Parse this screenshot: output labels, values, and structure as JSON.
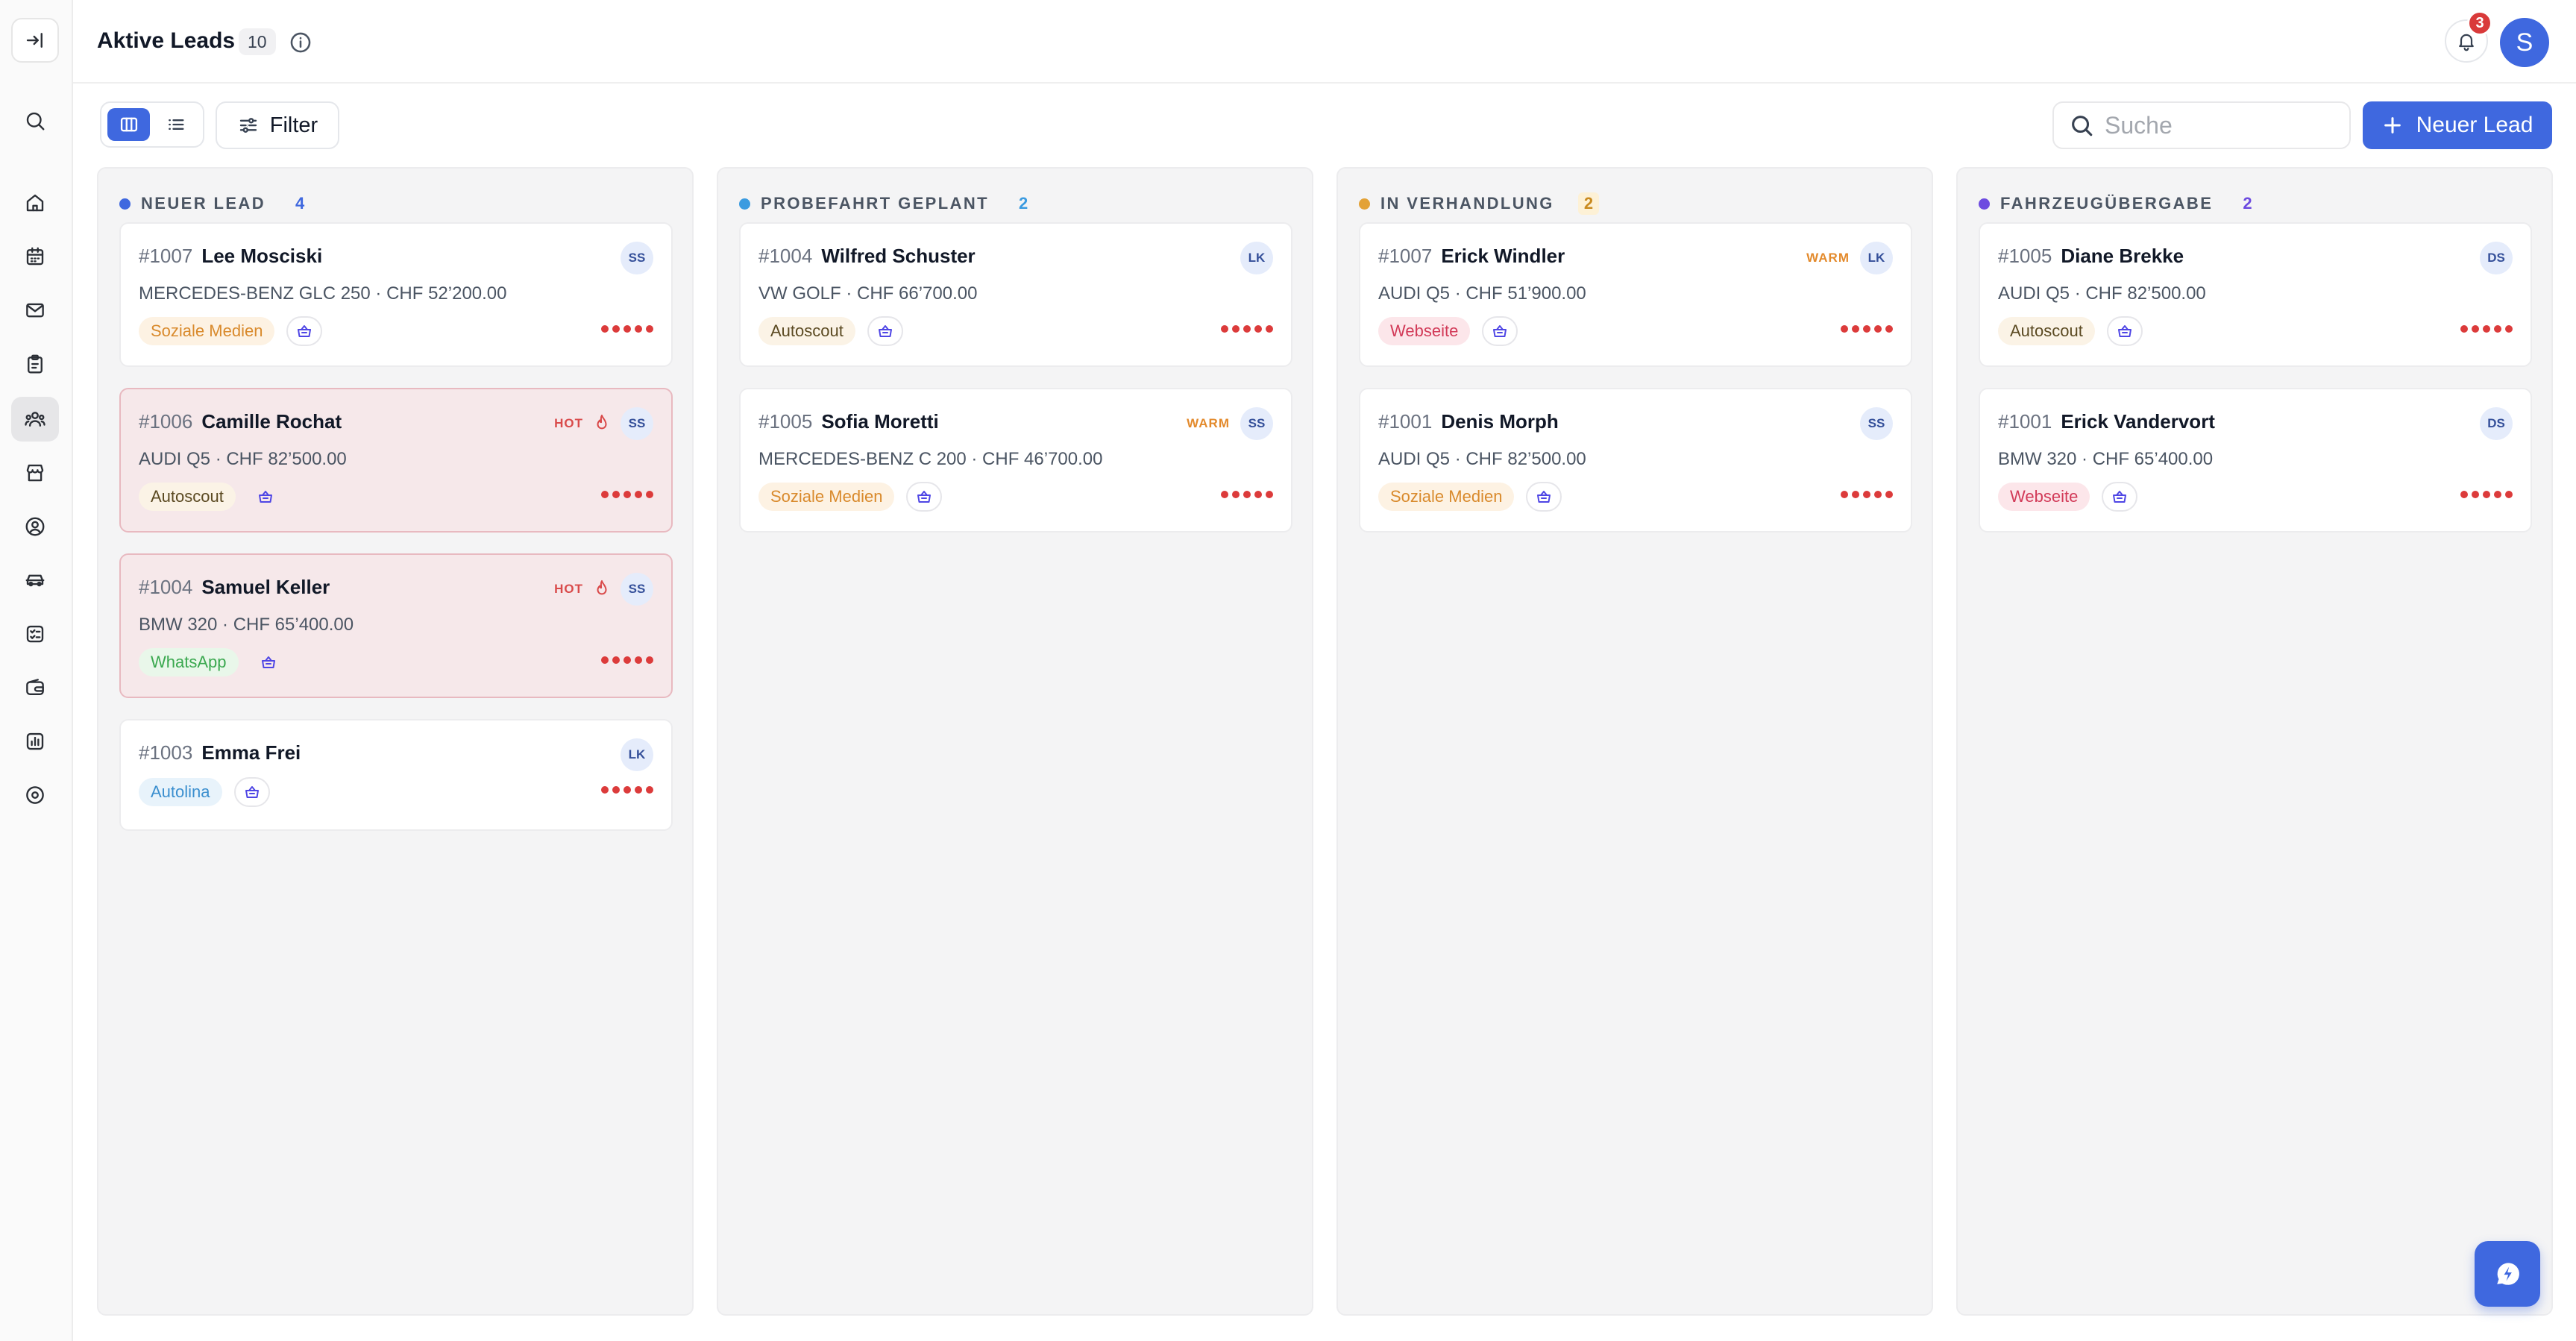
{
  "header": {
    "title": "Aktive Leads",
    "count": "10",
    "notification_count": "3",
    "avatar_initial": "S"
  },
  "toolbar": {
    "filter_label": "Filter",
    "search_placeholder": "Suche",
    "search_value": "",
    "new_lead_label": "Neuer Lead"
  },
  "sidebar": {
    "items": [
      "collapse",
      "search",
      "home",
      "calendar",
      "inbox",
      "clipboard",
      "leads",
      "store",
      "contacts",
      "vehicles",
      "checklist",
      "wallet",
      "reports",
      "settings"
    ],
    "active": "leads"
  },
  "colors": {
    "accent": "#3f68df",
    "neuer_lead": "#3f68df",
    "probefahrt": "#3b9be0",
    "verhandlung": "#e3a237",
    "uebergabe": "#6d4be0",
    "hot": "#d94a4a",
    "warm": "#e38a2c"
  },
  "columns": [
    {
      "title": "NEUER LEAD",
      "count": "4",
      "cards": [
        {
          "id": "#1007",
          "name": "Lee Mosciski",
          "vehicle": "MERCEDES-BENZ GLC 250 · CHF 52’200.00",
          "source": "Soziale Medien",
          "initials": "SS",
          "badge": ""
        },
        {
          "id": "#1006",
          "name": "Camille Rochat",
          "vehicle": "AUDI Q5 · CHF 82’500.00",
          "source": "Autoscout",
          "initials": "SS",
          "badge": "HOT"
        },
        {
          "id": "#1004",
          "name": "Samuel Keller",
          "vehicle": "BMW 320 · CHF 65’400.00",
          "source": "WhatsApp",
          "initials": "SS",
          "badge": "HOT"
        },
        {
          "id": "#1003",
          "name": "Emma Frei",
          "vehicle": "",
          "source": "Autolina",
          "initials": "LK",
          "badge": ""
        }
      ]
    },
    {
      "title": "PROBEFAHRT GEPLANT",
      "count": "2",
      "cards": [
        {
          "id": "#1004",
          "name": "Wilfred Schuster",
          "vehicle": "VW GOLF · CHF 66’700.00",
          "source": "Autoscout",
          "initials": "LK",
          "badge": ""
        },
        {
          "id": "#1005",
          "name": "Sofia Moretti",
          "vehicle": "MERCEDES-BENZ C 200 · CHF 46’700.00",
          "source": "Soziale Medien",
          "initials": "SS",
          "badge": "WARM"
        }
      ]
    },
    {
      "title": "IN VERHANDLUNG",
      "count": "2",
      "cards": [
        {
          "id": "#1007",
          "name": "Erick Windler",
          "vehicle": "AUDI Q5 · CHF 51’900.00",
          "source": "Webseite",
          "initials": "LK",
          "badge": "WARM"
        },
        {
          "id": "#1001",
          "name": "Denis Morph",
          "vehicle": "AUDI Q5 · CHF 82’500.00",
          "source": "Soziale Medien",
          "initials": "SS",
          "badge": ""
        }
      ]
    },
    {
      "title": "FAHRZEUGÜBERGABE",
      "count": "2",
      "cards": [
        {
          "id": "#1005",
          "name": "Diane Brekke",
          "vehicle": "AUDI Q5 · CHF 82’500.00",
          "source": "Autoscout",
          "initials": "DS",
          "badge": ""
        },
        {
          "id": "#1001",
          "name": "Erick Vandervort",
          "vehicle": "BMW 320 · CHF 65’400.00",
          "source": "Webseite",
          "initials": "DS",
          "badge": ""
        }
      ]
    }
  ]
}
